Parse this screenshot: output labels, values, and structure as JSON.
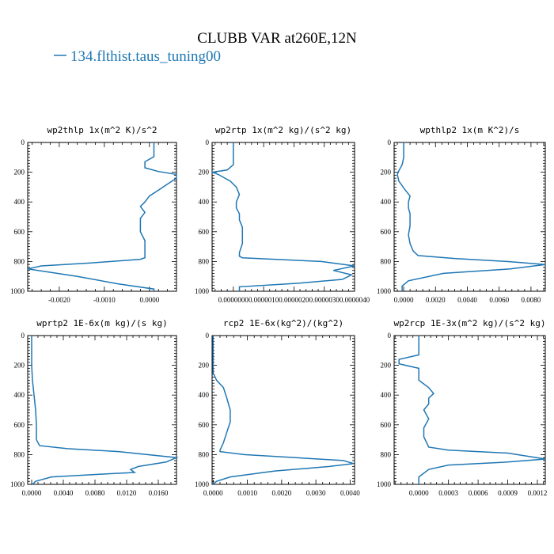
{
  "figure": {
    "title": "CLUBB VAR at260E,12N",
    "legend_label": "134.flthist.taus_tuning00",
    "line_color": "#1f77b4"
  },
  "chart_data": [
    {
      "type": "line",
      "title": "wp2thlp   1x(m^2 K)/s^2",
      "xlim": [
        -0.0027,
        0.0006
      ],
      "ylim": [
        1000,
        0
      ],
      "x_ticks": [
        -0.002,
        -0.001,
        0.0
      ],
      "x_tick_labels": [
        "-0.0020",
        "-0.0010",
        "0.0000"
      ],
      "y_ticks": [
        0,
        200,
        400,
        600,
        800,
        1000
      ],
      "y_tick_labels": [
        "0",
        "200",
        "400",
        "600",
        "800",
        "1000"
      ],
      "series": [
        {
          "x": [
            0.0001,
            0.0001,
            0.0001,
            -0.0001,
            -0.0001,
            0.0002,
            0.0006,
            0.0006,
            0.0004,
            0.0002,
            0.0,
            -0.0001,
            -0.0002,
            -0.0001,
            -0.0002,
            -0.0002,
            -0.0002,
            -0.0001,
            -0.0001,
            -0.0001,
            -0.0002,
            -0.0013,
            -0.0024,
            -0.0027,
            -0.0016,
            -0.0007,
            0.0001,
            0.0001
          ],
          "y": [
            0,
            50,
            95,
            130,
            170,
            195,
            215,
            240,
            280,
            320,
            360,
            400,
            430,
            470,
            510,
            560,
            600,
            660,
            720,
            775,
            785,
            810,
            830,
            850,
            900,
            950,
            985,
            1000
          ]
        }
      ]
    },
    {
      "type": "line",
      "title": "wp2rtp   1x(m^2 kg)/(s^2 kg)",
      "xlim": [
        -7e-07,
        4e-06
      ],
      "ylim": [
        1000,
        0
      ],
      "x_ticks": [
        0.0,
        1e-06,
        2e-06,
        3e-06,
        4e-06
      ],
      "x_tick_labels": [
        "0.0000000",
        "0.0000010",
        "0.0000020",
        "0.0000030",
        "0.0000040"
      ],
      "y_ticks": [
        0,
        200,
        400,
        600,
        800,
        1000
      ],
      "y_tick_labels": [
        "0",
        "200",
        "400",
        "600",
        "800",
        "1000"
      ],
      "series": [
        {
          "x": [
            0.0,
            0.0,
            -2e-07,
            -7e-07,
            -5e-07,
            -1e-07,
            1e-07,
            2e-07,
            1e-07,
            1e-07,
            2e-07,
            2e-07,
            3e-07,
            3e-07,
            3e-07,
            2e-07,
            2e-07,
            3e-07,
            2.9e-06,
            4e-06,
            3.3e-06,
            3.9e-06,
            3.6e-06,
            2.2e-06,
            2e-07,
            2e-07
          ],
          "y": [
            0,
            150,
            185,
            200,
            215,
            260,
            300,
            350,
            400,
            440,
            480,
            520,
            570,
            620,
            680,
            740,
            765,
            775,
            800,
            830,
            860,
            890,
            920,
            945,
            970,
            1000
          ]
        }
      ]
    },
    {
      "type": "line",
      "title": "wpthlp2   1x(m K^2)/s",
      "xlim": [
        -0.0006,
        0.0089
      ],
      "ylim": [
        1000,
        0
      ],
      "x_ticks": [
        0.0,
        0.002,
        0.004,
        0.006,
        0.008
      ],
      "x_tick_labels": [
        "0.0000",
        "0.0020",
        "0.0040",
        "0.0060",
        "0.0080"
      ],
      "y_ticks": [
        0,
        200,
        400,
        600,
        800,
        1000
      ],
      "y_tick_labels": [
        "0",
        "200",
        "400",
        "600",
        "800",
        "1000"
      ],
      "series": [
        {
          "x": [
            0.0,
            0.0,
            0.0,
            -0.0001,
            -0.0003,
            -0.0004,
            -0.0003,
            0.0001,
            0.0004,
            0.0003,
            0.0003,
            0.0004,
            0.0004,
            0.0004,
            0.0003,
            0.0004,
            0.0006,
            0.0009,
            0.0032,
            0.0065,
            0.0089,
            0.0067,
            0.0025,
            0.0003,
            -0.0001,
            -0.0001
          ],
          "y": [
            0,
            70,
            100,
            150,
            190,
            215,
            260,
            320,
            360,
            400,
            440,
            480,
            520,
            560,
            620,
            680,
            730,
            760,
            780,
            800,
            820,
            850,
            880,
            930,
            965,
            1000
          ]
        }
      ]
    },
    {
      "type": "line",
      "title": "wprtp2   1E-6x(m kg)/(s kg)",
      "xlim": [
        -0.0005,
        0.0183
      ],
      "ylim": [
        1000,
        0
      ],
      "x_ticks": [
        0.0,
        0.004,
        0.008,
        0.012,
        0.016
      ],
      "x_tick_labels": [
        "0.0000",
        "0.0040",
        "0.0080",
        "0.0120",
        "0.0160"
      ],
      "y_ticks": [
        0,
        200,
        400,
        600,
        800,
        1000
      ],
      "y_tick_labels": [
        "0",
        "200",
        "400",
        "600",
        "800",
        "1000"
      ],
      "series": [
        {
          "x": [
            0.0,
            0.0,
            0.0001,
            0.0003,
            0.0005,
            0.0006,
            0.0006,
            0.001,
            0.0045,
            0.011,
            0.0183,
            0.017,
            0.0135,
            0.0125,
            0.013,
            0.0095,
            0.0025,
            0.0005,
            0.0001
          ],
          "y": [
            0,
            200,
            300,
            400,
            500,
            600,
            700,
            740,
            760,
            780,
            820,
            850,
            880,
            900,
            920,
            930,
            950,
            980,
            1000
          ]
        }
      ]
    },
    {
      "type": "line",
      "title": "rcp2   1E-6x(kg^2)/(kg^2)",
      "xlim": [
        -3e-05,
        0.00413
      ],
      "ylim": [
        1000,
        0
      ],
      "x_ticks": [
        0.0,
        0.001,
        0.002,
        0.003,
        0.004
      ],
      "x_tick_labels": [
        "0.0000",
        "0.0010",
        "0.0020",
        "0.0030",
        "0.0040"
      ],
      "y_ticks": [
        0,
        200,
        400,
        600,
        800,
        1000
      ],
      "y_tick_labels": [
        "0",
        "200",
        "400",
        "600",
        "800",
        "1000"
      ],
      "series": [
        {
          "x": [
            0.0,
            0.0,
            0.0001,
            0.0003,
            0.0004,
            0.0005,
            0.0005,
            0.0004,
            0.0003,
            0.0002,
            0.0002,
            0.0009,
            0.0038,
            0.0041,
            0.0034,
            0.0018,
            0.0005,
            0.0001,
            0.0
          ],
          "y": [
            0,
            250,
            300,
            350,
            420,
            500,
            580,
            650,
            720,
            770,
            780,
            800,
            840,
            860,
            880,
            910,
            950,
            980,
            1000
          ]
        }
      ]
    },
    {
      "type": "line",
      "title": "wp2rcp   1E-3x(m^2 kg)/(s^2 kg)",
      "xlim": [
        -0.00025,
        0.00128
      ],
      "ylim": [
        1000,
        0
      ],
      "x_ticks": [
        0.0,
        0.0003,
        0.0006,
        0.0009,
        0.0012
      ],
      "x_tick_labels": [
        "0.0000",
        "0.0003",
        "0.0006",
        "0.0009",
        "0.0012"
      ],
      "y_ticks": [
        0,
        200,
        400,
        600,
        800,
        1000
      ],
      "y_tick_labels": [
        "0",
        "200",
        "400",
        "600",
        "800",
        "1000"
      ],
      "series": [
        {
          "x": [
            0.0,
            0.0,
            -0.0002,
            -0.0002,
            0.0,
            0.0,
            0.0001,
            0.00015,
            0.0001,
            0.0001,
            5e-05,
            0.0001,
            5e-05,
            5e-05,
            0.0001,
            0.0003,
            0.0009,
            0.00128,
            0.0009,
            0.0003,
            0.0001,
            0.0,
            0.0
          ],
          "y": [
            0,
            130,
            160,
            190,
            220,
            300,
            350,
            390,
            420,
            460,
            500,
            560,
            620,
            680,
            750,
            770,
            790,
            830,
            850,
            870,
            900,
            950,
            1000
          ]
        }
      ]
    }
  ]
}
